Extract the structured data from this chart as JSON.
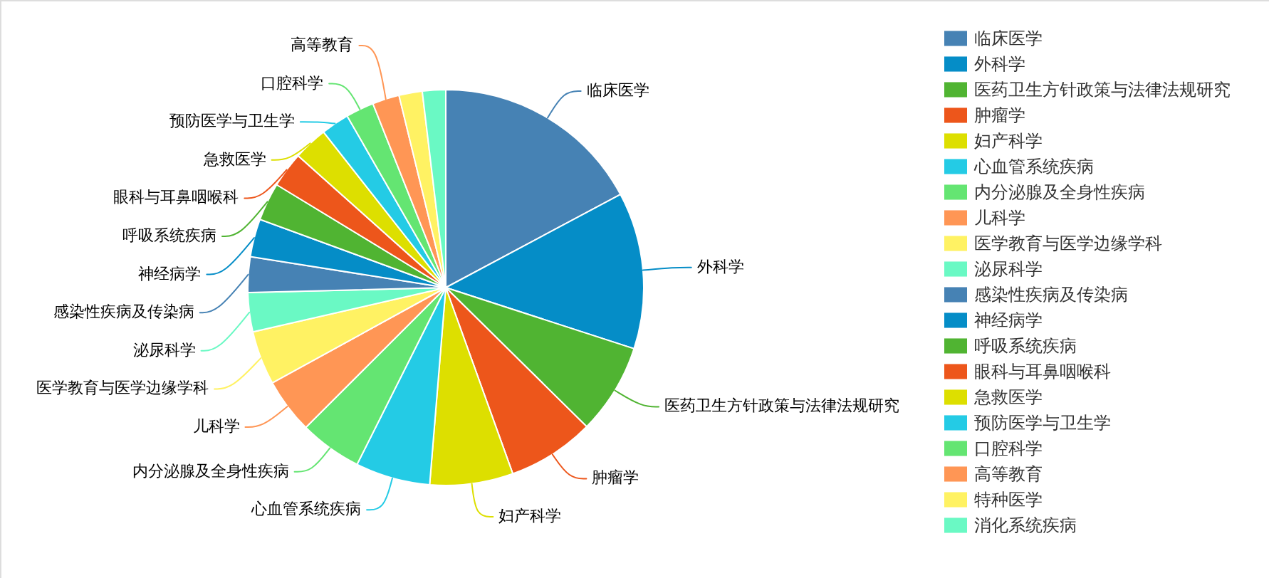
{
  "chart_data": {
    "type": "pie",
    "categories": [
      "临床医学",
      "外科学",
      "医药卫生方针政策与法律法规研究",
      "肿瘤学",
      "妇产科学",
      "心血管系统疾病",
      "内分泌腺及全身性疾病",
      "儿科学",
      "医学教育与医学边缘学科",
      "泌尿科学",
      "感染性疾病及传染病",
      "神经病学",
      "呼吸系统疾病",
      "眼科与耳鼻咽喉科",
      "急救医学",
      "预防医学与卫生学",
      "口腔科学",
      "高等教育",
      "特种医学",
      "消化系统疾病"
    ],
    "values": [
      17.2,
      12.8,
      7.4,
      7.1,
      6.8,
      6.1,
      5.1,
      4.5,
      4.4,
      3.2,
      2.9,
      3.1,
      3.1,
      2.9,
      2.8,
      2.3,
      2.3,
      2.2,
      1.9,
      1.9
    ],
    "colors": [
      "#4682b4",
      "#058dc7",
      "#50b432",
      "#ed561b",
      "#dddf00",
      "#24cbe5",
      "#64e572",
      "#ff9655",
      "#fff263",
      "#6af9c4",
      "#4682b4",
      "#058dc7",
      "#50b432",
      "#ed561b",
      "#dddf00",
      "#24cbe5",
      "#64e572",
      "#ff9655",
      "#fff263",
      "#6af9c4"
    ],
    "legend": "right"
  }
}
